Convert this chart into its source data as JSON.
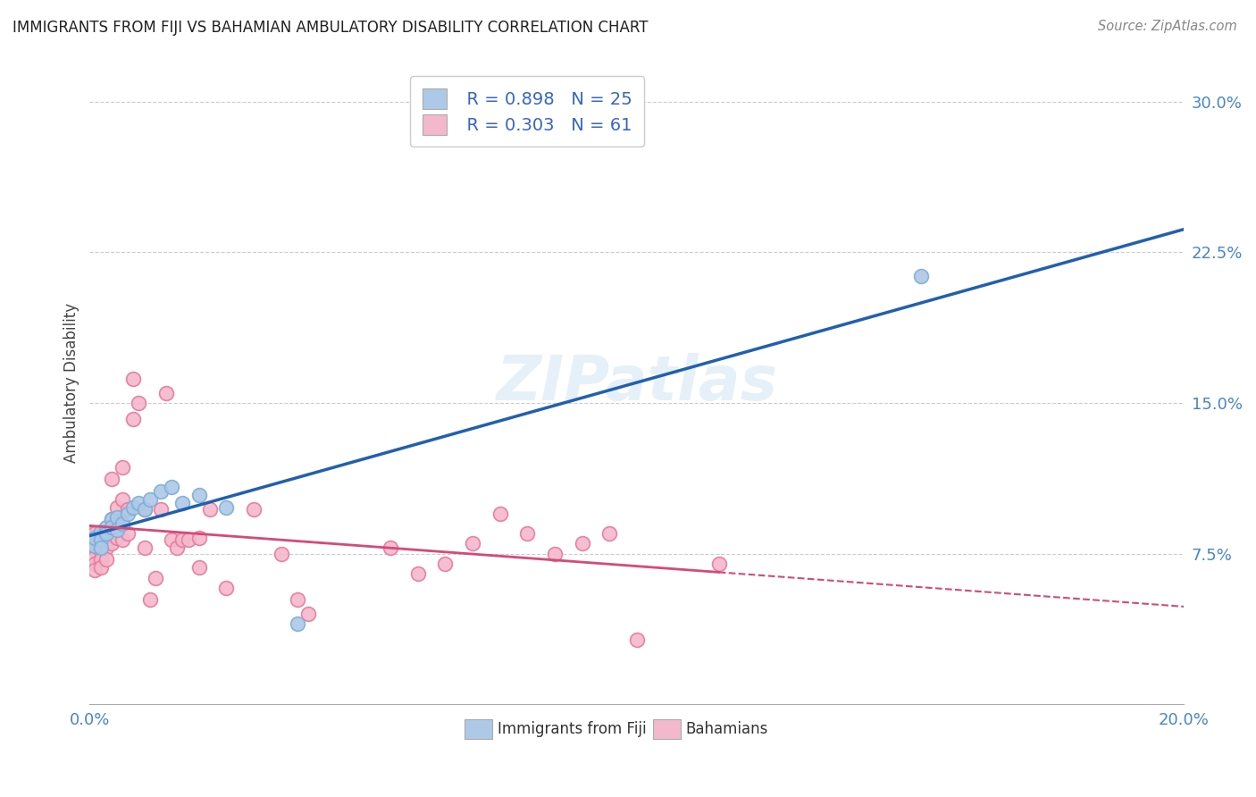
{
  "title": "IMMIGRANTS FROM FIJI VS BAHAMIAN AMBULATORY DISABILITY CORRELATION CHART",
  "source": "Source: ZipAtlas.com",
  "ylabel": "Ambulatory Disability",
  "xlabel_fiji": "Immigrants from Fiji",
  "xlabel_bahamian": "Bahamians",
  "xlim": [
    0.0,
    0.2
  ],
  "ylim": [
    0.0,
    0.32
  ],
  "yticks": [
    0.075,
    0.15,
    0.225,
    0.3
  ],
  "ytick_labels": [
    "7.5%",
    "15.0%",
    "22.5%",
    "30.0%"
  ],
  "xticks": [
    0.0,
    0.04,
    0.08,
    0.12,
    0.16,
    0.2
  ],
  "xtick_labels": [
    "0.0%",
    "",
    "",
    "",
    "",
    "20.0%"
  ],
  "fiji_color": "#aec8e8",
  "fiji_edge_color": "#7aaed6",
  "bahamian_color": "#f4b8cc",
  "bahamian_edge_color": "#e87898",
  "fiji_line_color": "#2060b0",
  "bahamian_line_color": "#d84878",
  "R_fiji": 0.898,
  "N_fiji": 25,
  "R_bahamian": 0.303,
  "N_bahamian": 61,
  "fiji_x": [
    0.0005,
    0.001,
    0.001,
    0.002,
    0.002,
    0.002,
    0.003,
    0.003,
    0.004,
    0.004,
    0.005,
    0.005,
    0.006,
    0.007,
    0.008,
    0.009,
    0.01,
    0.011,
    0.013,
    0.015,
    0.017,
    0.02,
    0.025,
    0.038,
    0.152
  ],
  "fiji_y": [
    0.082,
    0.079,
    0.083,
    0.086,
    0.082,
    0.078,
    0.088,
    0.085,
    0.092,
    0.088,
    0.093,
    0.087,
    0.09,
    0.095,
    0.098,
    0.1,
    0.097,
    0.102,
    0.106,
    0.108,
    0.1,
    0.104,
    0.098,
    0.04,
    0.213
  ],
  "bahamian_x": [
    0.0,
    0.0,
    0.0,
    0.001,
    0.001,
    0.001,
    0.001,
    0.001,
    0.001,
    0.002,
    0.002,
    0.002,
    0.002,
    0.002,
    0.003,
    0.003,
    0.003,
    0.003,
    0.004,
    0.004,
    0.004,
    0.005,
    0.005,
    0.005,
    0.006,
    0.006,
    0.006,
    0.007,
    0.007,
    0.008,
    0.008,
    0.009,
    0.01,
    0.01,
    0.011,
    0.012,
    0.013,
    0.014,
    0.015,
    0.016,
    0.017,
    0.018,
    0.02,
    0.02,
    0.022,
    0.025,
    0.03,
    0.035,
    0.038,
    0.04,
    0.055,
    0.06,
    0.065,
    0.07,
    0.075,
    0.08,
    0.085,
    0.09,
    0.095,
    0.1,
    0.115
  ],
  "bahamian_y": [
    0.085,
    0.082,
    0.079,
    0.085,
    0.08,
    0.077,
    0.073,
    0.07,
    0.067,
    0.084,
    0.08,
    0.076,
    0.072,
    0.068,
    0.086,
    0.082,
    0.078,
    0.072,
    0.112,
    0.092,
    0.08,
    0.098,
    0.09,
    0.083,
    0.118,
    0.102,
    0.082,
    0.097,
    0.085,
    0.162,
    0.142,
    0.15,
    0.097,
    0.078,
    0.052,
    0.063,
    0.097,
    0.155,
    0.082,
    0.078,
    0.082,
    0.082,
    0.083,
    0.068,
    0.097,
    0.058,
    0.097,
    0.075,
    0.052,
    0.045,
    0.078,
    0.065,
    0.07,
    0.08,
    0.095,
    0.085,
    0.075,
    0.08,
    0.085,
    0.032,
    0.07
  ]
}
